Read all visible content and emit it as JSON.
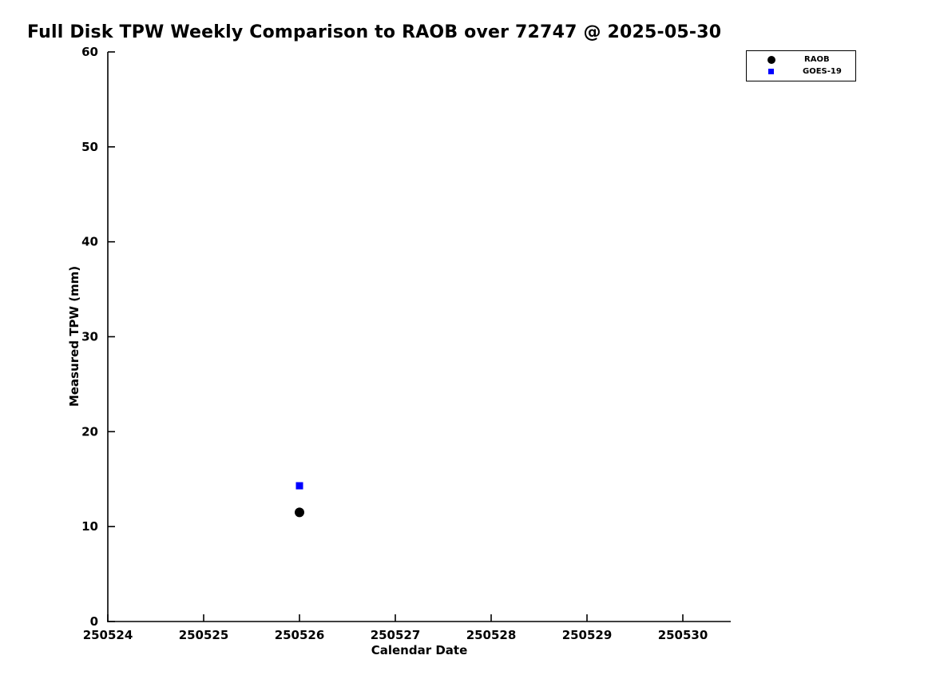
{
  "title": "Full Disk TPW Weekly Comparison to RAOB over 72747 @ 2025-05-30",
  "chart_data": {
    "type": "scatter",
    "title": "Full Disk TPW Weekly Comparison to RAOB over 72747 @ 2025-05-30",
    "xlabel": "Calendar Date",
    "ylabel": "Measured TPW (mm)",
    "xlim": [
      250524,
      250530.5
    ],
    "ylim": [
      0,
      60
    ],
    "x_ticks": [
      "250524",
      "250525",
      "250526",
      "250527",
      "250528",
      "250529",
      "250530"
    ],
    "y_ticks": [
      "0",
      "10",
      "20",
      "30",
      "40",
      "50",
      "60"
    ],
    "grid": false,
    "legend_position": "top-right-outside",
    "legend": [
      {
        "name": "RAOB",
        "marker": "circle",
        "color": "#000000"
      },
      {
        "name": "GOES-19",
        "marker": "square",
        "color": "#0000ff"
      }
    ],
    "series": [
      {
        "name": "RAOB",
        "marker": "circle",
        "color": "#000000",
        "points": [
          {
            "x": 250526,
            "y": 11.5
          }
        ]
      },
      {
        "name": "GOES-19",
        "marker": "square",
        "color": "#0000ff",
        "points": [
          {
            "x": 250526,
            "y": 14.3
          }
        ]
      }
    ]
  }
}
